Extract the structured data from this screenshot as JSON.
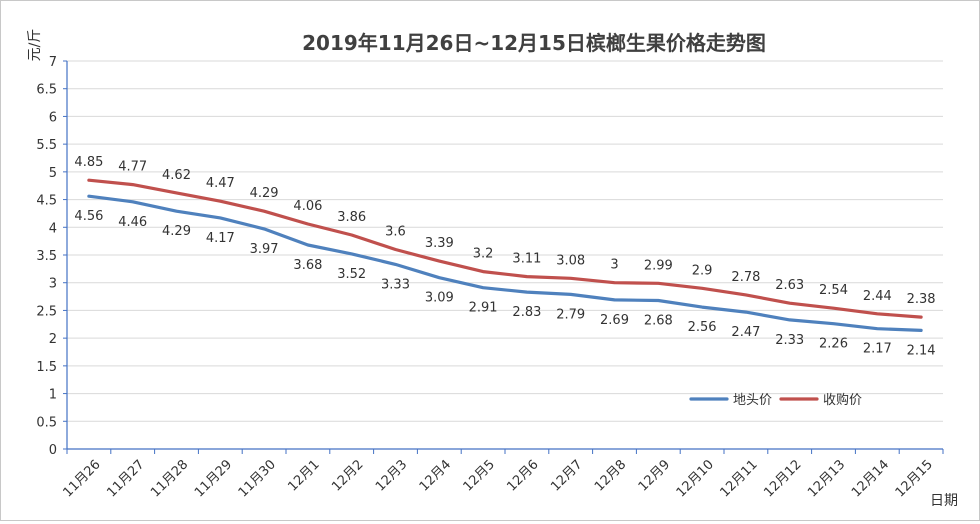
{
  "chart_data": {
    "type": "line",
    "title": "2019年11月26日~12月15日槟榔生果价格走势图",
    "xlabel": "日期",
    "ylabel": "元/斤",
    "ylim": [
      0,
      7
    ],
    "ytick_step": 0.5,
    "yticks": [
      "0",
      "0.5",
      "1",
      "1.5",
      "2",
      "2.5",
      "3",
      "3.5",
      "4",
      "4.5",
      "5",
      "5.5",
      "6",
      "6.5",
      "7"
    ],
    "grid": true,
    "legend_position": "bottom-right",
    "categories": [
      "11月26",
      "11月27",
      "11月28",
      "11月29",
      "11月30",
      "12月1",
      "12月2",
      "12月3",
      "12月4",
      "12月5",
      "12月6",
      "12月7",
      "12月8",
      "12月9",
      "12月10",
      "12月11",
      "12月12",
      "12月13",
      "12月14",
      "12月15"
    ],
    "series": [
      {
        "name": "地头价",
        "color": "#4f81bd",
        "label_position": "below",
        "values": [
          4.56,
          4.46,
          4.29,
          4.17,
          3.97,
          3.68,
          3.52,
          3.33,
          3.09,
          2.91,
          2.83,
          2.79,
          2.69,
          2.68,
          2.56,
          2.47,
          2.33,
          2.26,
          2.17,
          2.14
        ]
      },
      {
        "name": "收购价",
        "color": "#c0504d",
        "label_position": "above",
        "values": [
          4.85,
          4.77,
          4.62,
          4.47,
          4.29,
          4.06,
          3.86,
          3.6,
          3.39,
          3.2,
          3.11,
          3.08,
          3,
          2.99,
          2.9,
          2.78,
          2.63,
          2.54,
          2.44,
          2.38
        ]
      }
    ]
  }
}
